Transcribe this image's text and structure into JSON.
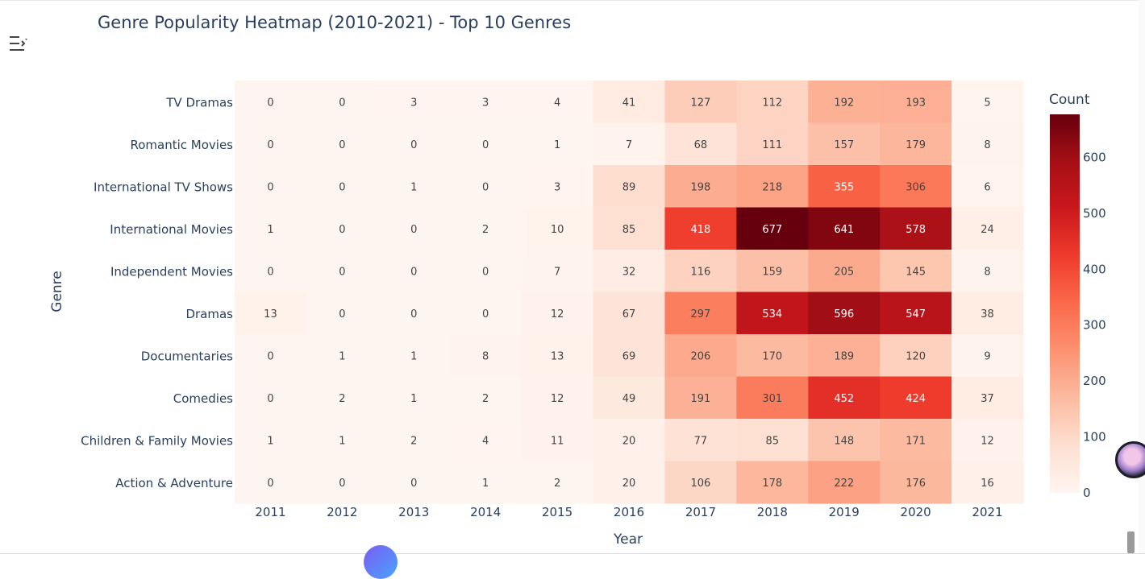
{
  "title": "Genre Popularity Heatmap (2010-2021) - Top 10 Genres",
  "icons": {
    "menu": "collapse-menu-icon",
    "assistant": "assistant-avatar-icon",
    "assistant_bubble": "assistant-bubble-icon"
  },
  "colors": {
    "low": "#fff5f0",
    "high": "#67000d",
    "text_dark": "#2a3f5f"
  },
  "chart_data": {
    "type": "heatmap",
    "title": "Genre Popularity Heatmap (2010-2021) - Top 10 Genres",
    "xlabel": "Year",
    "ylabel": "Genre",
    "colorbar_title": "Count",
    "colorbar_ticks": [
      0,
      100,
      200,
      300,
      400,
      500,
      600
    ],
    "zmin": 0,
    "zmax": 677,
    "colorscale": "Reds",
    "x": [
      "2011",
      "2012",
      "2013",
      "2014",
      "2015",
      "2016",
      "2017",
      "2018",
      "2019",
      "2020",
      "2021"
    ],
    "y": [
      "TV Dramas",
      "Romantic Movies",
      "International TV Shows",
      "International Movies",
      "Independent Movies",
      "Dramas",
      "Documentaries",
      "Comedies",
      "Children & Family Movies",
      "Action & Adventure"
    ],
    "z": [
      [
        0,
        0,
        3,
        3,
        4,
        41,
        127,
        112,
        192,
        193,
        5
      ],
      [
        0,
        0,
        0,
        0,
        1,
        7,
        68,
        111,
        157,
        179,
        8
      ],
      [
        0,
        0,
        1,
        0,
        3,
        89,
        198,
        218,
        355,
        306,
        6
      ],
      [
        1,
        0,
        0,
        2,
        10,
        85,
        418,
        677,
        641,
        578,
        24
      ],
      [
        0,
        0,
        0,
        0,
        7,
        32,
        116,
        159,
        205,
        145,
        8
      ],
      [
        13,
        0,
        0,
        0,
        12,
        67,
        297,
        534,
        596,
        547,
        38
      ],
      [
        0,
        1,
        1,
        8,
        13,
        69,
        206,
        170,
        189,
        120,
        9
      ],
      [
        0,
        2,
        1,
        2,
        12,
        49,
        191,
        301,
        452,
        424,
        37
      ],
      [
        1,
        1,
        2,
        4,
        11,
        20,
        77,
        85,
        148,
        171,
        12
      ],
      [
        0,
        0,
        0,
        1,
        2,
        20,
        106,
        178,
        222,
        176,
        16
      ]
    ]
  }
}
